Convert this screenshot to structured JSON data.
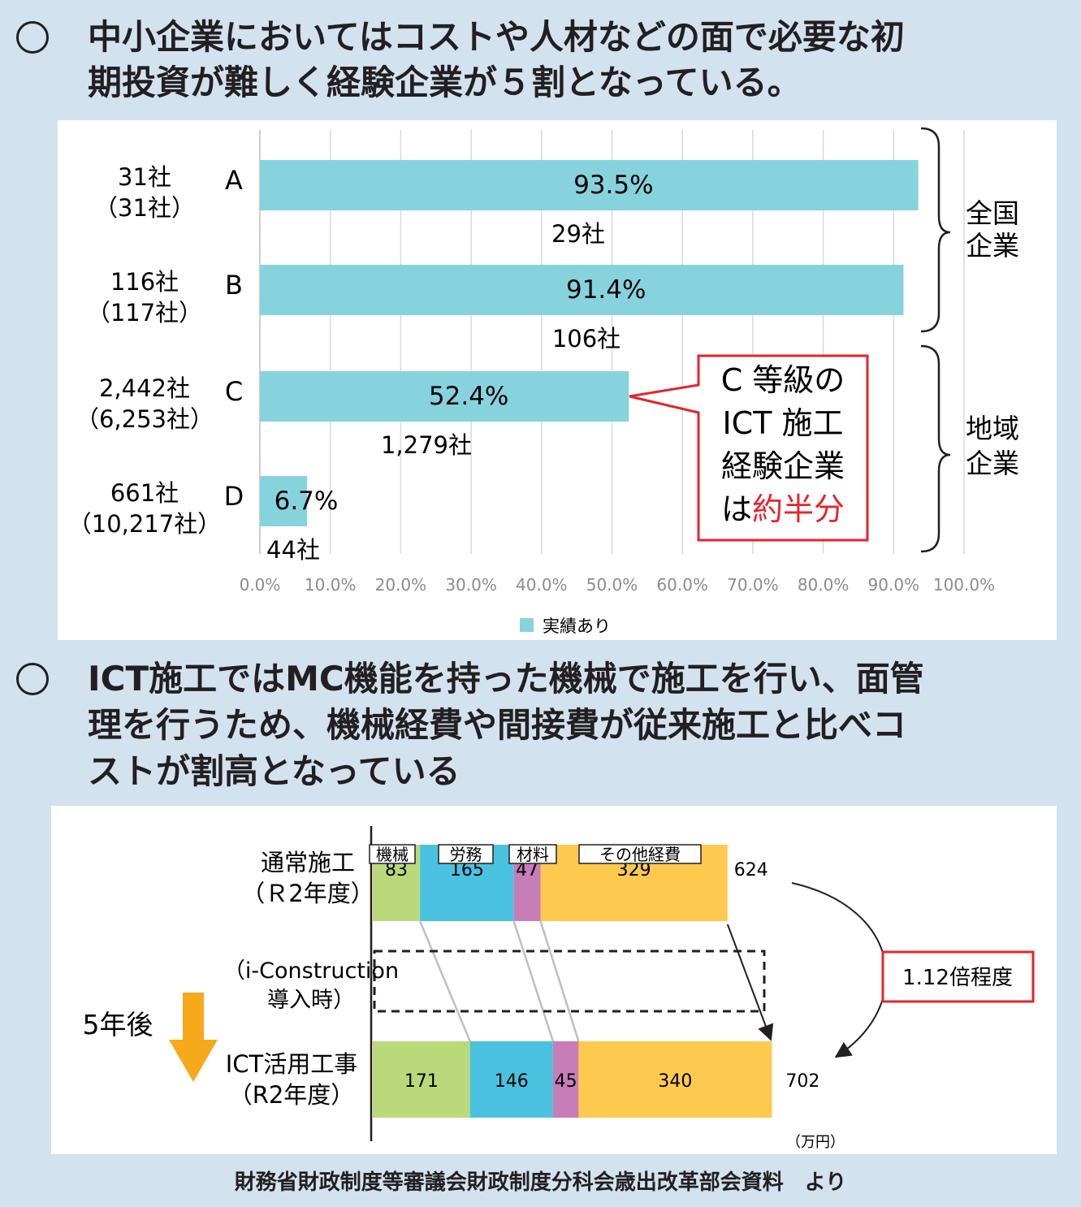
{
  "section1": {
    "heading_line1": "中小企業においてはコストや人材などの面で必要な初",
    "heading_line2": "期投資が難しく経験企業が５割となっている。"
  },
  "section2": {
    "heading_line1": "ICT施工ではMC機能を持った機械で施工を行い、面管",
    "heading_line2": "理を行うため、機械経費や間接費が従来施工と比べコ",
    "heading_line3": "ストが割高となっている"
  },
  "colors": {
    "bar1": "#86d3dd",
    "machine": "#b9d97b",
    "labor": "#4ac2df",
    "material": "#c77db8",
    "other": "#fdc94e",
    "arrow": "#f6a91b",
    "callout": "#e1262d"
  },
  "chart_data": [
    {
      "type": "bar",
      "orientation": "horizontal",
      "categories": [
        "A",
        "B",
        "C",
        "D"
      ],
      "series": [
        {
          "name": "実績あり",
          "values": [
            93.5,
            91.4,
            52.4,
            6.7
          ]
        }
      ],
      "value_labels": [
        "93.5%",
        "91.4%",
        "52.4%",
        "6.7%"
      ],
      "experienced_counts": [
        "29社",
        "106社",
        "1,279社",
        "44社"
      ],
      "left_counts": [
        [
          "31社",
          "（31社）"
        ],
        [
          "116社",
          "（117社）"
        ],
        [
          "2,442社",
          "（6,253社）"
        ],
        [
          "661社",
          "（10,217社）"
        ]
      ],
      "xlim": [
        0,
        100
      ],
      "xticks": [
        0,
        10,
        20,
        30,
        40,
        50,
        60,
        70,
        80,
        90,
        100
      ],
      "xtick_labels": [
        "0.0%",
        "10.0%",
        "20.0%",
        "30.0%",
        "40.0%",
        "50.0%",
        "60.0%",
        "70.0%",
        "80.0%",
        "90.0%",
        "100.0%"
      ],
      "grid": true,
      "legend": "bottom",
      "groups": [
        {
          "label_lines": [
            "全国",
            "企業"
          ],
          "categories": [
            "A",
            "B"
          ]
        },
        {
          "label_lines": [
            "地域",
            "企業"
          ],
          "categories": [
            "C",
            "D"
          ]
        }
      ],
      "callout": {
        "lines": [
          "C 等級の",
          "ICT 施工",
          "経験企業"
        ],
        "last_prefix": "は",
        "last_highlight": "約半分",
        "points_to": "C"
      }
    },
    {
      "type": "bar",
      "orientation": "horizontal",
      "stacked": true,
      "segment_names": [
        "機械",
        "労務",
        "材料",
        "その他経費"
      ],
      "rows": [
        {
          "label_lines": [
            "通常施工",
            "（Ｒ2年度）"
          ],
          "values": [
            83,
            165,
            47,
            329
          ],
          "total": 624
        },
        {
          "label_lines": [
            "ICT活用工事",
            "（R2年度）"
          ],
          "values": [
            171,
            146,
            45,
            340
          ],
          "total": 702
        }
      ],
      "middle_label_lines": [
        "（i-Construction",
        "導入時）"
      ],
      "after_label": "5年後",
      "ratio_label": "1.12倍程度",
      "unit": "（万円）"
    }
  ],
  "source": "財務省財政制度等審議会財政制度分科会歳出改革部会資料　より"
}
